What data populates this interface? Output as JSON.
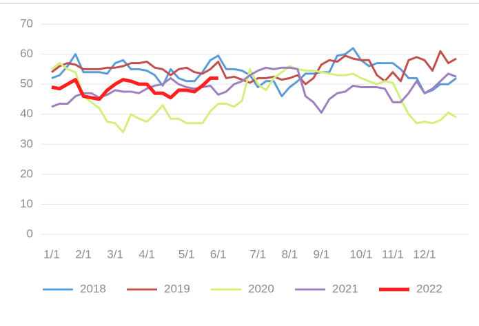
{
  "chart_data": {
    "type": "line",
    "categories": [
      "1/1",
      null,
      null,
      null,
      "2/1",
      null,
      null,
      null,
      "3/1",
      null,
      null,
      null,
      "4/1",
      null,
      null,
      null,
      null,
      "5/1",
      null,
      null,
      null,
      "6/1",
      null,
      null,
      null,
      null,
      "7/1",
      null,
      null,
      null,
      "8/1",
      null,
      null,
      null,
      "9/1",
      null,
      null,
      null,
      null,
      "10/1",
      null,
      null,
      null,
      "11/1",
      null,
      null,
      null,
      "12/1",
      null,
      null,
      null,
      null
    ],
    "series": [
      {
        "name": "2018",
        "color": "#5b9bd5",
        "values": [
          52,
          53,
          56,
          60,
          54,
          54,
          54,
          53.5,
          57,
          58,
          55,
          55,
          54.5,
          53,
          49.5,
          55,
          52,
          51,
          51,
          54,
          58,
          59.5,
          55,
          55,
          54.5,
          53,
          49,
          51,
          51,
          46,
          49,
          51,
          53.5,
          53.5,
          54,
          54,
          59.5,
          60,
          62,
          58,
          56,
          57,
          57,
          57,
          55,
          52,
          52,
          47,
          48,
          50,
          50,
          52
        ]
      },
      {
        "name": "2019",
        "color": "#c0504d",
        "values": [
          54,
          56,
          57,
          56.5,
          55,
          55,
          55,
          55.5,
          55.5,
          56,
          57,
          57,
          57.5,
          55.5,
          55,
          53,
          55,
          55.5,
          54,
          53.5,
          55,
          57.5,
          52,
          52.5,
          51.5,
          50.5,
          52,
          52,
          52.5,
          51.5,
          52,
          53,
          50,
          52,
          56.5,
          58,
          57.5,
          59.5,
          58.5,
          58,
          58,
          53,
          51,
          54,
          51,
          58,
          59,
          58,
          54.5,
          61,
          57,
          58.5
        ]
      },
      {
        "name": "2020",
        "color": "#d4ee7c",
        "values": [
          55,
          57,
          55,
          54,
          46,
          44,
          42,
          37.5,
          37,
          34,
          40,
          38.5,
          37.5,
          40,
          43,
          38.5,
          38.5,
          37,
          37,
          37,
          41,
          43.5,
          43.5,
          42.5,
          44.5,
          55,
          50,
          48,
          52,
          54,
          56,
          55,
          54.5,
          54.5,
          54,
          53.5,
          53,
          53,
          53.5,
          52,
          51,
          50,
          51,
          50.5,
          45,
          40,
          37,
          37.5,
          37,
          38,
          40.5,
          39
        ]
      },
      {
        "name": "2021",
        "color": "#9e7fbf",
        "values": [
          42.5,
          43.5,
          43.5,
          46,
          47,
          47,
          45.5,
          46.5,
          48,
          47.5,
          47.5,
          47,
          48.5,
          49.5,
          50,
          52,
          50,
          49,
          48.5,
          49,
          49.5,
          46.5,
          47.5,
          50,
          51,
          53,
          54.5,
          55.5,
          55,
          55.5,
          55.5,
          55,
          46,
          44,
          40.5,
          45,
          47,
          47.5,
          49.5,
          49,
          49,
          49,
          48.5,
          44,
          44,
          47,
          51,
          47,
          48.5,
          51,
          53.5,
          52.5
        ]
      },
      {
        "name": "2022",
        "color": "#ff1f1f",
        "values": [
          49,
          48.5,
          50,
          51.5,
          46,
          45.5,
          45,
          48,
          50,
          51.5,
          51,
          50,
          50,
          47,
          47,
          45.5,
          48,
          48,
          47.5,
          49.5,
          52,
          52,
          null,
          null,
          null,
          null,
          null,
          null,
          null,
          null,
          null,
          null,
          null,
          null,
          null,
          null,
          null,
          null,
          null,
          null,
          null,
          null,
          null,
          null,
          null,
          null,
          null,
          null,
          null,
          null,
          null,
          null
        ]
      }
    ],
    "ylim": [
      0,
      70
    ],
    "yticks": [
      0,
      10,
      20,
      30,
      40,
      50,
      60,
      70
    ],
    "grid": true,
    "legend": "bottom"
  }
}
